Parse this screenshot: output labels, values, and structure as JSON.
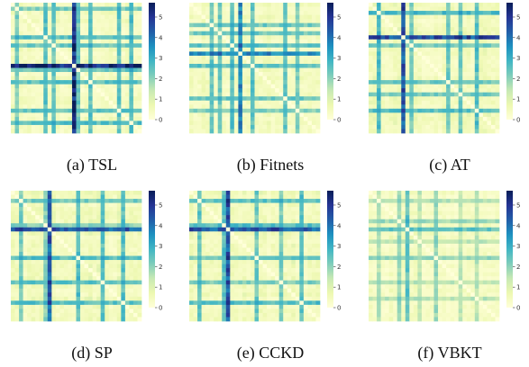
{
  "colors": {
    "colormap": "YlGnBu",
    "stops": [
      "#ffffd9",
      "#edf8b1",
      "#c7e9b4",
      "#7fcdbb",
      "#41b6c4",
      "#1d91c0",
      "#225ea8",
      "#253494",
      "#081d58"
    ]
  },
  "chart_data": [
    {
      "type": "heatmap",
      "caption": "(a) TSL",
      "grid_size": 32,
      "vmin": 0,
      "vmax": 5.7,
      "colorbar_ticks": [
        "0",
        "1",
        "2",
        "3",
        "4",
        "5"
      ],
      "colorbar_values": [
        0,
        1,
        2,
        3,
        4,
        5
      ],
      "dominant_index": 15,
      "dominant_value": 5.6,
      "secondary_indices": [
        1,
        8,
        10,
        16,
        19,
        26,
        29
      ],
      "secondary_value": 2.6,
      "background_value": 0.35
    },
    {
      "type": "heatmap",
      "caption": "(b) Fitnets",
      "grid_size": 32,
      "vmin": 0,
      "vmax": 5.7,
      "colorbar_ticks": [
        "0",
        "1",
        "2",
        "3",
        "4",
        "5"
      ],
      "colorbar_values": [
        0,
        1,
        2,
        3,
        4,
        5
      ],
      "dominant_index": 12,
      "dominant_value": 3.8,
      "secondary_indices": [
        5,
        7,
        10,
        15,
        23,
        26
      ],
      "secondary_value": 2.4,
      "background_value": 0.35
    },
    {
      "type": "heatmap",
      "caption": "(c) AT",
      "grid_size": 32,
      "vmin": 0,
      "vmax": 5.7,
      "colorbar_ticks": [
        "0",
        "1",
        "2",
        "3",
        "4",
        "5"
      ],
      "colorbar_values": [
        0,
        1,
        2,
        3,
        4,
        5
      ],
      "dominant_index": 8,
      "dominant_value": 4.8,
      "secondary_indices": [
        2,
        10,
        19,
        22,
        26
      ],
      "secondary_value": 2.5,
      "background_value": 0.4
    },
    {
      "type": "heatmap",
      "caption": "(d) SP",
      "grid_size": 32,
      "vmin": 0,
      "vmax": 5.7,
      "colorbar_ticks": [
        "0",
        "1",
        "2",
        "3",
        "4",
        "5"
      ],
      "colorbar_values": [
        0,
        1,
        2,
        3,
        4,
        5
      ],
      "dominant_index": 9,
      "dominant_value": 4.6,
      "secondary_indices": [
        2,
        8,
        16,
        22,
        27
      ],
      "secondary_value": 2.4,
      "background_value": 0.4
    },
    {
      "type": "heatmap",
      "caption": "(e) CCKD",
      "grid_size": 32,
      "vmin": 0,
      "vmax": 5.7,
      "colorbar_ticks": [
        "0",
        "1",
        "2",
        "3",
        "4",
        "5"
      ],
      "colorbar_values": [
        0,
        1,
        2,
        3,
        4,
        5
      ],
      "dominant_index": 9,
      "dominant_value": 4.7,
      "secondary_indices": [
        2,
        8,
        16,
        22,
        27
      ],
      "secondary_value": 2.4,
      "background_value": 0.4
    },
    {
      "type": "heatmap",
      "caption": "(f) VBKT",
      "grid_size": 32,
      "vmin": 0,
      "vmax": 5.7,
      "colorbar_ticks": [
        "0",
        "1",
        "2",
        "3",
        "4",
        "5"
      ],
      "colorbar_values": [
        0,
        1,
        2,
        3,
        4,
        5
      ],
      "dominant_index": 9,
      "dominant_value": 2.6,
      "secondary_indices": [
        2,
        7,
        12,
        16,
        22,
        26
      ],
      "secondary_value": 1.8,
      "background_value": 0.3
    }
  ]
}
